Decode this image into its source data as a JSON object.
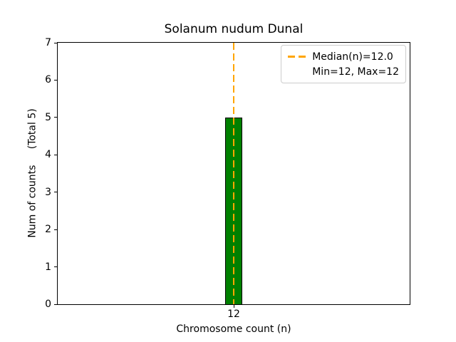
{
  "chart_data": {
    "type": "bar",
    "title": "Solanum nudum Dunal",
    "xlabel": "Chromosome count (n)",
    "ylabel": "Num of counts     (Total 5)",
    "categories": [
      "12"
    ],
    "values": [
      5
    ],
    "total_counts": 5,
    "ylim": [
      0,
      7
    ],
    "yticks": [
      0,
      1,
      2,
      3,
      4,
      5,
      6,
      7
    ],
    "grid": false,
    "bar_color": "#008000",
    "bar_edge_color": "#000000",
    "median_line": {
      "value": 12.0,
      "color": "#FFA500",
      "style": "dashed"
    },
    "legend": {
      "position": "upper-right",
      "entries": [
        {
          "label": "Median(n)=12.0",
          "marker": "orange-dashed-line",
          "color": "#FFA500"
        },
        {
          "label": "Min=12, Max=12",
          "marker": "none"
        }
      ]
    }
  }
}
